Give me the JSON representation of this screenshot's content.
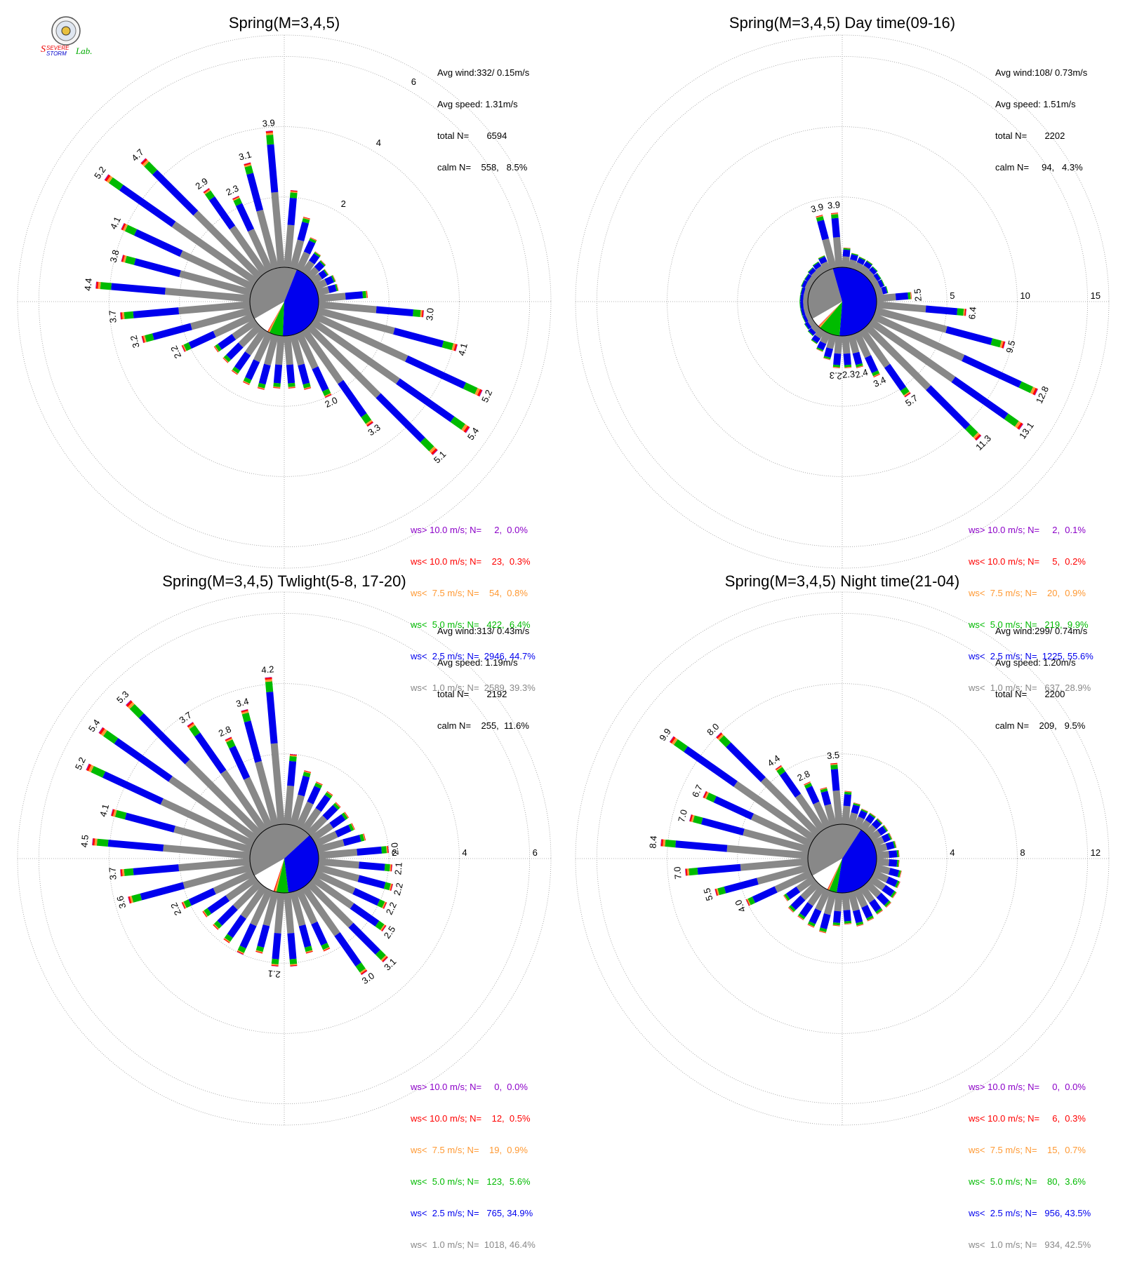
{
  "logo": {
    "text_line1": "Severe",
    "text_line2": "Storm",
    "text_line3": "Lab."
  },
  "colors": {
    "gt10": "#8b00c8",
    "lt10": "#ff0000",
    "lt75": "#ff9933",
    "lt5": "#00bb00",
    "lt25": "#0000ee",
    "lt1": "#888888"
  },
  "chart_data": [
    {
      "type": "wind-rose",
      "title": "Spring(M=3,4,5)",
      "stats": {
        "avg_wind": "Avg wind:332/ 0.15m/s",
        "avg_speed": "Avg speed: 1.31m/s",
        "total": "total N=       6594",
        "calm": "calm N=    558,   8.5%"
      },
      "ring_values": [
        2,
        4,
        6
      ],
      "ring_labels": [
        "2",
        "4",
        "6"
      ],
      "rmax": 7.2,
      "pie": [
        39.3,
        44.7,
        6.4,
        0.8,
        0.3,
        0.0,
        8.5
      ],
      "bars": [
        {
          "dir": 5,
          "v": 3.9
        },
        {
          "dir": 15,
          "v": 3.1
        },
        {
          "dir": 25,
          "v": 2.3
        },
        {
          "dir": 35,
          "v": 2.9
        },
        {
          "dir": 45,
          "v": 4.7
        },
        {
          "dir": 55,
          "v": 5.2
        },
        {
          "dir": 65,
          "v": 4.1
        },
        {
          "dir": 75,
          "v": 3.8
        },
        {
          "dir": 85,
          "v": 4.4
        },
        {
          "dir": 95,
          "v": 3.7
        },
        {
          "dir": 105,
          "v": 3.2
        },
        {
          "dir": 115,
          "v": 2.2
        },
        {
          "dir": 125,
          "v": 1.4
        },
        {
          "dir": 135,
          "v": 1.4
        },
        {
          "dir": 145,
          "v": 1.5
        },
        {
          "dir": 155,
          "v": 1.6
        },
        {
          "dir": 165,
          "v": 1.6
        },
        {
          "dir": 175,
          "v": 1.5
        },
        {
          "dir": 185,
          "v": 1.5
        },
        {
          "dir": 195,
          "v": 1.6
        },
        {
          "dir": 205,
          "v": 2.0
        },
        {
          "dir": 215,
          "v": 3.3
        },
        {
          "dir": 225,
          "v": 5.1
        },
        {
          "dir": 235,
          "v": 5.4
        },
        {
          "dir": 245,
          "v": 5.2
        },
        {
          "dir": 255,
          "v": 4.1
        },
        {
          "dir": 265,
          "v": 3.0
        },
        {
          "dir": 275,
          "v": 1.4
        },
        {
          "dir": 285,
          "v": 0.6
        },
        {
          "dir": 295,
          "v": 0.6
        },
        {
          "dir": 305,
          "v": 0.5
        },
        {
          "dir": 315,
          "v": 0.6
        },
        {
          "dir": 325,
          "v": 0.7
        },
        {
          "dir": 335,
          "v": 1.0
        },
        {
          "dir": 345,
          "v": 1.5
        },
        {
          "dir": 355,
          "v": 2.2
        }
      ],
      "bar_labels": [
        {
          "dir": 5,
          "v": 3.9,
          "text": "3.9"
        },
        {
          "dir": 15,
          "v": 3.1,
          "text": "3.1"
        },
        {
          "dir": 25,
          "v": 2.3,
          "text": "2.3"
        },
        {
          "dir": 35,
          "v": 2.9,
          "text": "2.9"
        },
        {
          "dir": 45,
          "v": 4.7,
          "text": "4.7"
        },
        {
          "dir": 55,
          "v": 5.2,
          "text": "5.2"
        },
        {
          "dir": 65,
          "v": 4.1,
          "text": "4.1"
        },
        {
          "dir": 75,
          "v": 3.8,
          "text": "3.8"
        },
        {
          "dir": 85,
          "v": 4.4,
          "text": "4.4"
        },
        {
          "dir": 95,
          "v": 3.7,
          "text": "3.7"
        },
        {
          "dir": 105,
          "v": 3.2,
          "text": "3.2"
        },
        {
          "dir": 115,
          "v": 2.2,
          "text": "2.2"
        },
        {
          "dir": 205,
          "v": 2.0,
          "text": "2.0"
        },
        {
          "dir": 215,
          "v": 3.3,
          "text": "3.3"
        },
        {
          "dir": 225,
          "v": 5.1,
          "text": "5.1"
        },
        {
          "dir": 235,
          "v": 5.4,
          "text": "5.4"
        },
        {
          "dir": 245,
          "v": 5.2,
          "text": "5.2"
        },
        {
          "dir": 255,
          "v": 4.1,
          "text": "4.1"
        },
        {
          "dir": 265,
          "v": 3.0,
          "text": "3.0"
        }
      ],
      "legend": [
        "ws> 10.0 m/s; N=     2,  0.0%",
        "ws< 10.0 m/s; N=    23,  0.3%",
        "ws<  7.5 m/s; N=    54,  0.8%",
        "ws<  5.0 m/s; N=   422,  6.4%",
        "ws<  2.5 m/s; N=  2946, 44.7%",
        "ws<  1.0 m/s; N=  2589, 39.3%"
      ]
    },
    {
      "type": "wind-rose",
      "title": "Spring(M=3,4,5) Day time(09-16)",
      "stats": {
        "avg_wind": "Avg wind:108/ 0.73m/s",
        "avg_speed": "Avg speed: 1.51m/s",
        "total": "total N=       2202",
        "calm": "calm N=     94,   4.3%"
      },
      "ring_values": [
        5,
        10,
        15
      ],
      "ring_labels": [
        "5",
        "10",
        "15"
      ],
      "rmax": 18,
      "pie": [
        28.9,
        55.6,
        9.9,
        0.9,
        0.2,
        0.1,
        4.3
      ],
      "bars": [
        {
          "dir": 5,
          "v": 3.9
        },
        {
          "dir": 15,
          "v": 3.9
        },
        {
          "dir": 25,
          "v": 1.1
        },
        {
          "dir": 35,
          "v": 0.9
        },
        {
          "dir": 45,
          "v": 0.8
        },
        {
          "dir": 55,
          "v": 0.7
        },
        {
          "dir": 65,
          "v": 0.7
        },
        {
          "dir": 75,
          "v": 0.6
        },
        {
          "dir": 85,
          "v": 0.6
        },
        {
          "dir": 95,
          "v": 0.6
        },
        {
          "dir": 105,
          "v": 0.6
        },
        {
          "dir": 115,
          "v": 0.6
        },
        {
          "dir": 125,
          "v": 0.7
        },
        {
          "dir": 135,
          "v": 0.8
        },
        {
          "dir": 145,
          "v": 1.1
        },
        {
          "dir": 155,
          "v": 1.4
        },
        {
          "dir": 165,
          "v": 1.8
        },
        {
          "dir": 175,
          "v": 2.3
        },
        {
          "dir": 185,
          "v": 2.3
        },
        {
          "dir": 195,
          "v": 2.4
        },
        {
          "dir": 205,
          "v": 3.4
        },
        {
          "dir": 215,
          "v": 5.7
        },
        {
          "dir": 225,
          "v": 11.3
        },
        {
          "dir": 235,
          "v": 13.1
        },
        {
          "dir": 245,
          "v": 12.8
        },
        {
          "dir": 255,
          "v": 9.5
        },
        {
          "dir": 265,
          "v": 6.4
        },
        {
          "dir": 275,
          "v": 2.5
        },
        {
          "dir": 285,
          "v": 0.9
        },
        {
          "dir": 295,
          "v": 0.8
        },
        {
          "dir": 305,
          "v": 0.8
        },
        {
          "dir": 315,
          "v": 0.9
        },
        {
          "dir": 325,
          "v": 1.0
        },
        {
          "dir": 335,
          "v": 1.0
        },
        {
          "dir": 345,
          "v": 1.1
        },
        {
          "dir": 355,
          "v": 1.4
        }
      ],
      "bar_labels": [
        {
          "dir": 5,
          "v": 3.9,
          "text": "3.9"
        },
        {
          "dir": 15,
          "v": 3.9,
          "text": "3.9"
        },
        {
          "dir": 175,
          "v": 2.3,
          "text": "2.3"
        },
        {
          "dir": 185,
          "v": 2.3,
          "text": "2.3"
        },
        {
          "dir": 195,
          "v": 2.4,
          "text": "2.4"
        },
        {
          "dir": 205,
          "v": 3.4,
          "text": "3.4"
        },
        {
          "dir": 215,
          "v": 5.7,
          "text": "5.7"
        },
        {
          "dir": 225,
          "v": 11.3,
          "text": "11.3"
        },
        {
          "dir": 235,
          "v": 13.1,
          "text": "13.1"
        },
        {
          "dir": 245,
          "v": 12.8,
          "text": "12.8"
        },
        {
          "dir": 255,
          "v": 9.5,
          "text": "9.5"
        },
        {
          "dir": 265,
          "v": 6.4,
          "text": "6.4"
        },
        {
          "dir": 275,
          "v": 2.5,
          "text": "2.5"
        }
      ],
      "legend": [
        "ws> 10.0 m/s; N=     2,  0.1%",
        "ws< 10.0 m/s; N=     5,  0.2%",
        "ws<  7.5 m/s; N=    20,  0.9%",
        "ws<  5.0 m/s; N=   219,  9.9%",
        "ws<  2.5 m/s; N=  1225, 55.6%",
        "ws<  1.0 m/s; N=   637, 28.9%"
      ]
    },
    {
      "type": "wind-rose",
      "title": "Spring(M=3,4,5) Twlight(5-8, 17-20)",
      "stats": {
        "avg_wind": "Avg wind:313/ 0.43m/s",
        "avg_speed": "Avg speed: 1.19m/s",
        "total": "total N=       2192",
        "calm": "calm N=    255,  11.6%"
      },
      "ring_values": [
        2,
        4,
        6
      ],
      "ring_labels": [
        "2",
        "4",
        "6"
      ],
      "rmax": 7.2,
      "pie": [
        46.4,
        34.9,
        5.6,
        0.9,
        0.5,
        0.0,
        11.6
      ],
      "bars": [
        {
          "dir": 5,
          "v": 4.2
        },
        {
          "dir": 15,
          "v": 3.4
        },
        {
          "dir": 25,
          "v": 2.8
        },
        {
          "dir": 35,
          "v": 3.7
        },
        {
          "dir": 45,
          "v": 5.3
        },
        {
          "dir": 55,
          "v": 5.4
        },
        {
          "dir": 65,
          "v": 5.2
        },
        {
          "dir": 75,
          "v": 4.1
        },
        {
          "dir": 85,
          "v": 4.5
        },
        {
          "dir": 95,
          "v": 3.7
        },
        {
          "dir": 105,
          "v": 3.6
        },
        {
          "dir": 115,
          "v": 2.2
        },
        {
          "dir": 125,
          "v": 1.8
        },
        {
          "dir": 135,
          "v": 1.8
        },
        {
          "dir": 145,
          "v": 1.9
        },
        {
          "dir": 155,
          "v": 2.0
        },
        {
          "dir": 165,
          "v": 1.8
        },
        {
          "dir": 175,
          "v": 2.1
        },
        {
          "dir": 185,
          "v": 2.1
        },
        {
          "dir": 195,
          "v": 1.8
        },
        {
          "dir": 205,
          "v": 1.9
        },
        {
          "dir": 215,
          "v": 3.0
        },
        {
          "dir": 225,
          "v": 3.1
        },
        {
          "dir": 235,
          "v": 2.5
        },
        {
          "dir": 245,
          "v": 2.2
        },
        {
          "dir": 255,
          "v": 2.2
        },
        {
          "dir": 265,
          "v": 2.1
        },
        {
          "dir": 275,
          "v": 2.0
        },
        {
          "dir": 285,
          "v": 1.4
        },
        {
          "dir": 295,
          "v": 1.2
        },
        {
          "dir": 305,
          "v": 1.2
        },
        {
          "dir": 315,
          "v": 1.2
        },
        {
          "dir": 325,
          "v": 1.3
        },
        {
          "dir": 335,
          "v": 1.4
        },
        {
          "dir": 345,
          "v": 1.6
        },
        {
          "dir": 355,
          "v": 2.0
        }
      ],
      "bar_labels": [
        {
          "dir": 5,
          "v": 4.2,
          "text": "4.2"
        },
        {
          "dir": 15,
          "v": 3.4,
          "text": "3.4"
        },
        {
          "dir": 25,
          "v": 2.8,
          "text": "2.8"
        },
        {
          "dir": 35,
          "v": 3.7,
          "text": "3.7"
        },
        {
          "dir": 45,
          "v": 5.3,
          "text": "5.3"
        },
        {
          "dir": 55,
          "v": 5.4,
          "text": "5.4"
        },
        {
          "dir": 65,
          "v": 5.2,
          "text": "5.2"
        },
        {
          "dir": 75,
          "v": 4.1,
          "text": "4.1"
        },
        {
          "dir": 85,
          "v": 4.5,
          "text": "4.5"
        },
        {
          "dir": 95,
          "v": 3.7,
          "text": "3.7"
        },
        {
          "dir": 105,
          "v": 3.6,
          "text": "3.6"
        },
        {
          "dir": 115,
          "v": 2.2,
          "text": "2.2"
        },
        {
          "dir": 175,
          "v": 2.1,
          "text": "2.1"
        },
        {
          "dir": 215,
          "v": 3.0,
          "text": "3.0"
        },
        {
          "dir": 225,
          "v": 3.1,
          "text": "3.1"
        },
        {
          "dir": 235,
          "v": 2.5,
          "text": "2.5"
        },
        {
          "dir": 245,
          "v": 2.2,
          "text": "2.2"
        },
        {
          "dir": 255,
          "v": 2.2,
          "text": "2.2"
        },
        {
          "dir": 265,
          "v": 2.1,
          "text": "2.1"
        },
        {
          "dir": 275,
          "v": 2.0,
          "text": "2.0"
        }
      ],
      "legend": [
        "ws> 10.0 m/s; N=     0,  0.0%",
        "ws< 10.0 m/s; N=    12,  0.5%",
        "ws<  7.5 m/s; N=    19,  0.9%",
        "ws<  5.0 m/s; N=   123,  5.6%",
        "ws<  2.5 m/s; N=   765, 34.9%",
        "ws<  1.0 m/s; N=  1018, 46.4%"
      ]
    },
    {
      "type": "wind-rose",
      "title": "Spring(M=3,4,5) Night time(21-04)",
      "stats": {
        "avg_wind": "Avg wind:299/ 0.74m/s",
        "avg_speed": "Avg speed: 1.20m/s",
        "total": "total N=       2200",
        "calm": "calm N=    209,   9.5%"
      },
      "ring_values": [
        4,
        8,
        12
      ],
      "ring_labels": [
        "4",
        "8",
        "12"
      ],
      "rmax": 14.4,
      "pie": [
        42.5,
        43.5,
        3.6,
        0.7,
        0.3,
        0.0,
        9.5
      ],
      "bars": [
        {
          "dir": 5,
          "v": 3.5
        },
        {
          "dir": 15,
          "v": 2.2
        },
        {
          "dir": 25,
          "v": 2.8
        },
        {
          "dir": 35,
          "v": 4.4
        },
        {
          "dir": 45,
          "v": 8.0
        },
        {
          "dir": 55,
          "v": 9.9
        },
        {
          "dir": 65,
          "v": 6.7
        },
        {
          "dir": 75,
          "v": 7.0
        },
        {
          "dir": 85,
          "v": 8.4
        },
        {
          "dir": 95,
          "v": 7.0
        },
        {
          "dir": 105,
          "v": 5.5
        },
        {
          "dir": 115,
          "v": 4.0
        },
        {
          "dir": 125,
          "v": 2.0
        },
        {
          "dir": 135,
          "v": 2.2
        },
        {
          "dir": 145,
          "v": 2.2
        },
        {
          "dir": 155,
          "v": 2.3
        },
        {
          "dir": 165,
          "v": 2.4
        },
        {
          "dir": 175,
          "v": 1.9
        },
        {
          "dir": 185,
          "v": 1.8
        },
        {
          "dir": 195,
          "v": 2.0
        },
        {
          "dir": 205,
          "v": 1.9
        },
        {
          "dir": 215,
          "v": 1.8
        },
        {
          "dir": 225,
          "v": 1.8
        },
        {
          "dir": 235,
          "v": 1.7
        },
        {
          "dir": 245,
          "v": 1.6
        },
        {
          "dir": 255,
          "v": 1.5
        },
        {
          "dir": 265,
          "v": 1.3
        },
        {
          "dir": 275,
          "v": 1.3
        },
        {
          "dir": 285,
          "v": 1.2
        },
        {
          "dir": 295,
          "v": 1.1
        },
        {
          "dir": 305,
          "v": 1.1
        },
        {
          "dir": 315,
          "v": 1.1
        },
        {
          "dir": 325,
          "v": 1.1
        },
        {
          "dir": 335,
          "v": 1.1
        },
        {
          "dir": 345,
          "v": 1.3
        },
        {
          "dir": 355,
          "v": 1.9
        }
      ],
      "bar_labels": [
        {
          "dir": 5,
          "v": 3.5,
          "text": "3.5"
        },
        {
          "dir": 25,
          "v": 2.8,
          "text": "2.8"
        },
        {
          "dir": 35,
          "v": 4.4,
          "text": "4.4"
        },
        {
          "dir": 45,
          "v": 8.0,
          "text": "8.0"
        },
        {
          "dir": 55,
          "v": 9.9,
          "text": "9.9"
        },
        {
          "dir": 65,
          "v": 6.7,
          "text": "6.7"
        },
        {
          "dir": 75,
          "v": 7.0,
          "text": "7.0"
        },
        {
          "dir": 85,
          "v": 8.4,
          "text": "8.4"
        },
        {
          "dir": 95,
          "v": 7.0,
          "text": "7.0"
        },
        {
          "dir": 105,
          "v": 5.5,
          "text": "5.5"
        },
        {
          "dir": 115,
          "v": 4.0,
          "text": "4.0"
        }
      ],
      "legend": [
        "ws> 10.0 m/s; N=     0,  0.0%",
        "ws< 10.0 m/s; N=     6,  0.3%",
        "ws<  7.5 m/s; N=    15,  0.7%",
        "ws<  5.0 m/s; N=    80,  3.6%",
        "ws<  2.5 m/s; N=   956, 43.5%",
        "ws<  1.0 m/s; N=   934, 42.5%"
      ]
    }
  ]
}
